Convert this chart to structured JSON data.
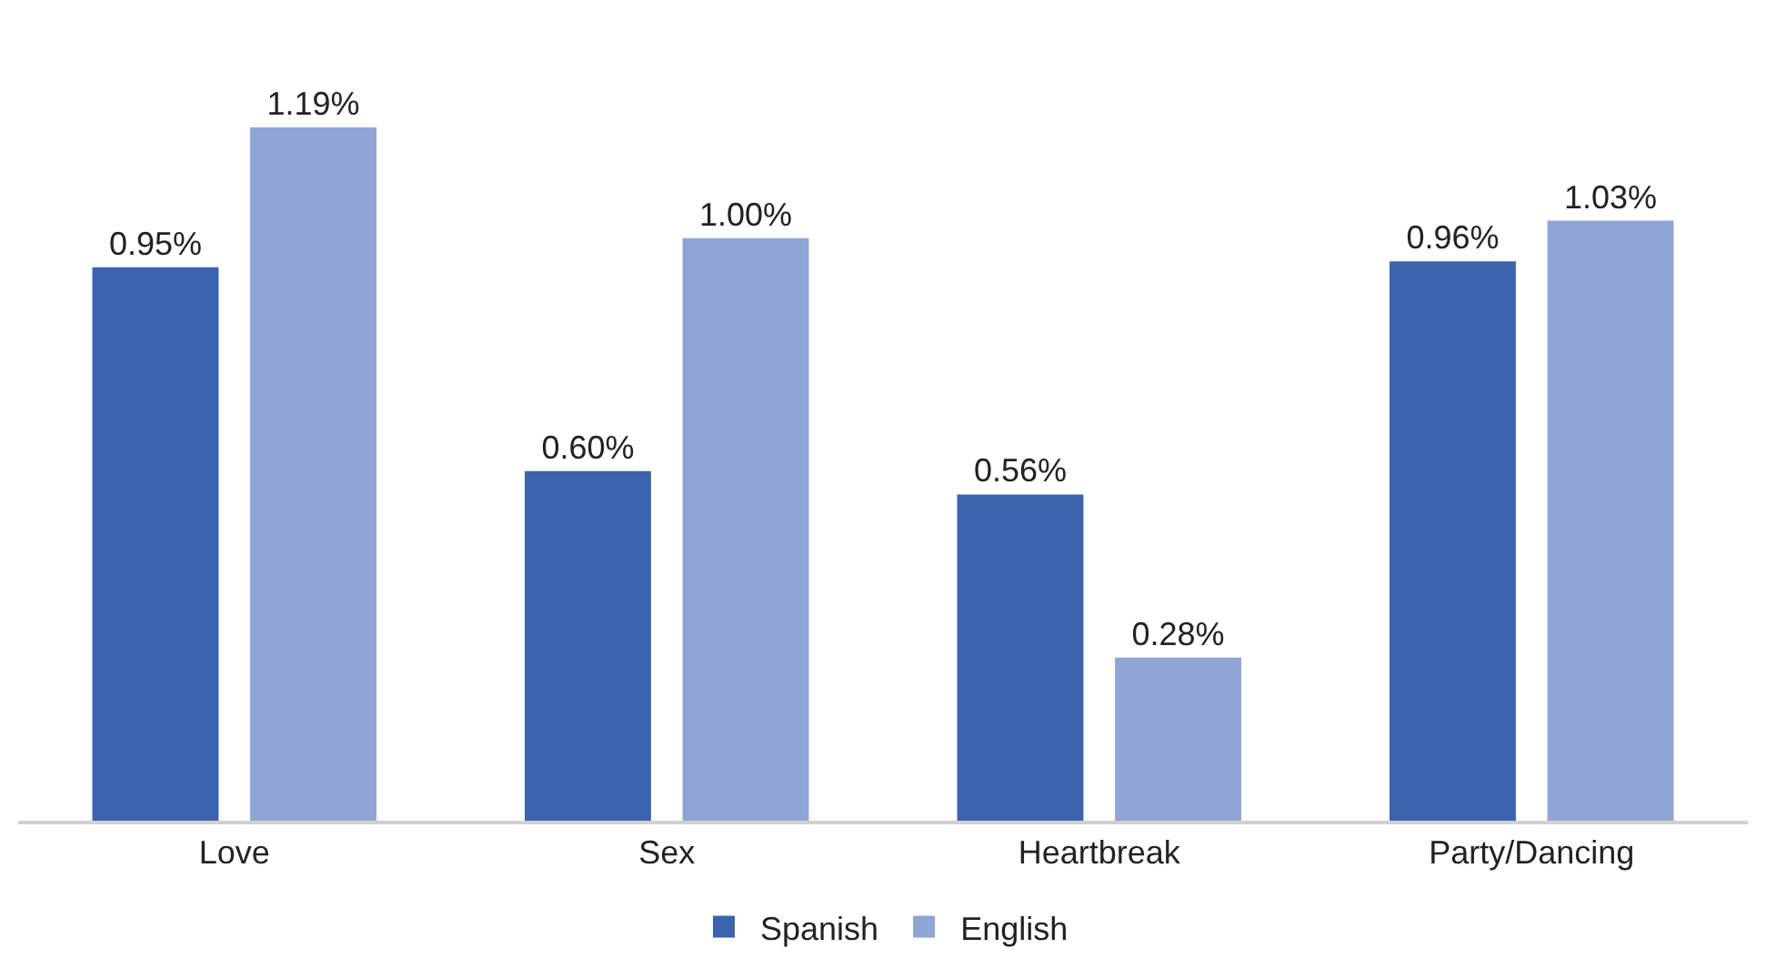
{
  "chart_data": {
    "type": "bar",
    "categories": [
      "Love",
      "Sex",
      "Heartbreak",
      "Party/Dancing"
    ],
    "series": [
      {
        "name": "Spanish",
        "color": "#3c64ae",
        "values": [
          0.95,
          0.6,
          0.56,
          0.96
        ],
        "value_labels": [
          "0.95%",
          "0.60%",
          "0.56%",
          "0.96%"
        ]
      },
      {
        "name": "English",
        "color": "#8fa5d6",
        "values": [
          1.19,
          1.0,
          0.28,
          1.03
        ],
        "value_labels": [
          "1.19%",
          "1.00%",
          "0.28%",
          "1.03%"
        ]
      }
    ],
    "legend": "bottom",
    "tick_labels": "x"
  }
}
